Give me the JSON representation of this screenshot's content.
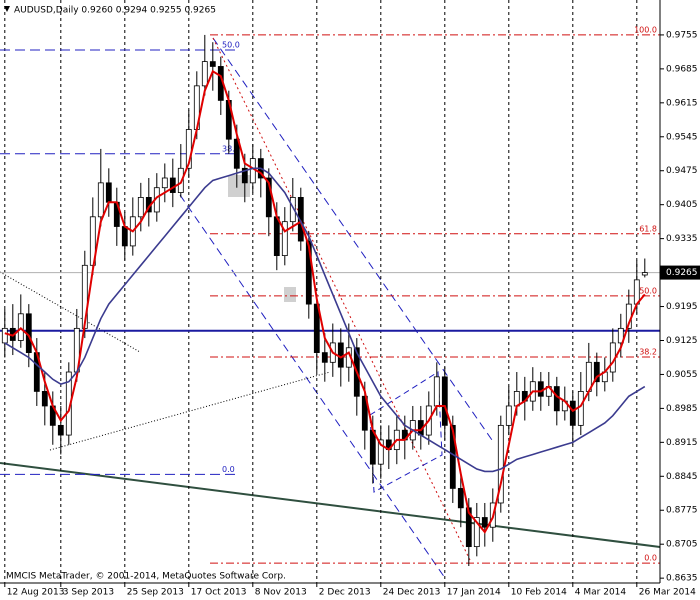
{
  "chart_data": {
    "type": "candlestick",
    "title": "AUDUSD,Daily  0.9260 0.9294 0.9255 0.9265",
    "footer": "MMCIS MetaTrader, © 2001-2014, MetaQuotes Software Corp.",
    "xlim": [
      -0.6,
      81.9
    ],
    "xticks": [
      {
        "value": 0,
        "label": "12 Aug 2013"
      },
      {
        "value": 7,
        "label": "3 Sep 2013"
      },
      {
        "value": 15,
        "label": "25 Sep 2013"
      },
      {
        "value": 23,
        "label": "17 Oct 2013"
      },
      {
        "value": 31,
        "label": "8 Nov 2013"
      },
      {
        "value": 39,
        "label": "2 Dec 2013"
      },
      {
        "value": 47,
        "label": "24 Dec 2013"
      },
      {
        "value": 55,
        "label": "17 Jan 2014"
      },
      {
        "value": 63,
        "label": "10 Feb 2014"
      },
      {
        "value": 71,
        "label": "4 Mar 2014"
      },
      {
        "value": 79,
        "label": "26 Mar 2014"
      }
    ],
    "ylim": [
      0.8625,
      0.9827
    ],
    "yticks": [
      0.9755,
      0.9685,
      0.9615,
      0.9545,
      0.9475,
      0.9405,
      0.9335,
      0.9195,
      0.9125,
      0.9055,
      0.8985,
      0.8915,
      0.8845,
      0.8775,
      0.8705,
      0.8635
    ],
    "current_price": 0.9265,
    "hline": 0.9145,
    "grid": true,
    "up_color": "#ffffff",
    "down_color": "#000000",
    "open": [
      0.912,
      0.915,
      0.9125,
      0.918,
      0.91,
      0.902,
      0.899,
      0.895,
      0.893,
      0.906,
      0.915,
      0.928,
      0.938,
      0.945,
      0.941,
      0.936,
      0.932,
      0.938,
      0.942,
      0.939,
      0.944,
      0.946,
      0.943,
      0.948,
      0.956,
      0.965,
      0.97,
      0.969,
      0.962,
      0.954,
      0.948,
      0.945,
      0.95,
      0.946,
      0.938,
      0.93,
      0.937,
      0.942,
      0.933,
      0.92,
      0.91,
      0.908,
      0.912,
      0.907,
      0.911,
      0.901,
      0.894,
      0.887,
      0.892,
      0.89,
      0.894,
      0.892,
      0.896,
      0.893,
      0.899,
      0.905,
      0.895,
      0.882,
      0.878,
      0.87,
      0.876,
      0.874,
      0.879,
      0.895,
      0.899,
      0.902,
      0.9,
      0.904,
      0.901,
      0.903,
      0.898,
      0.9,
      0.895,
      0.902,
      0.908,
      0.904,
      0.906,
      0.912,
      0.915,
      0.92,
      0.926
    ],
    "high": [
      0.919,
      0.92,
      0.922,
      0.92,
      0.913,
      0.906,
      0.902,
      0.899,
      0.908,
      0.919,
      0.931,
      0.942,
      0.952,
      0.948,
      0.944,
      0.939,
      0.942,
      0.945,
      0.946,
      0.947,
      0.949,
      0.95,
      0.953,
      0.96,
      0.968,
      0.9755,
      0.974,
      0.971,
      0.964,
      0.957,
      0.951,
      0.953,
      0.952,
      0.948,
      0.941,
      0.94,
      0.946,
      0.944,
      0.935,
      0.922,
      0.914,
      0.916,
      0.915,
      0.916,
      0.913,
      0.904,
      0.897,
      0.895,
      0.895,
      0.897,
      0.897,
      0.899,
      0.899,
      0.902,
      0.908,
      0.907,
      0.897,
      0.885,
      0.88,
      0.879,
      0.879,
      0.882,
      0.897,
      0.903,
      0.906,
      0.905,
      0.907,
      0.906,
      0.906,
      0.905,
      0.903,
      0.902,
      0.906,
      0.912,
      0.91,
      0.909,
      0.915,
      0.918,
      0.923,
      0.929,
      0.9294
    ],
    "low": [
      0.909,
      0.9095,
      0.911,
      0.907,
      0.899,
      0.895,
      0.891,
      0.889,
      0.891,
      0.904,
      0.913,
      0.926,
      0.936,
      0.938,
      0.932,
      0.929,
      0.93,
      0.935,
      0.936,
      0.937,
      0.941,
      0.94,
      0.942,
      0.946,
      0.954,
      0.963,
      0.964,
      0.959,
      0.951,
      0.944,
      0.941,
      0.943,
      0.942,
      0.934,
      0.927,
      0.928,
      0.935,
      0.931,
      0.917,
      0.906,
      0.904,
      0.905,
      0.903,
      0.904,
      0.897,
      0.89,
      0.883,
      0.884,
      0.886,
      0.887,
      0.888,
      0.89,
      0.89,
      0.891,
      0.897,
      0.892,
      0.879,
      0.874,
      0.866,
      0.868,
      0.87,
      0.871,
      0.877,
      0.893,
      0.897,
      0.896,
      0.898,
      0.898,
      0.899,
      0.895,
      0.896,
      0.891,
      0.893,
      0.9,
      0.901,
      0.902,
      0.904,
      0.909,
      0.912,
      0.918,
      0.9255
    ],
    "close": [
      0.915,
      0.9125,
      0.918,
      0.91,
      0.902,
      0.899,
      0.895,
      0.893,
      0.906,
      0.915,
      0.928,
      0.938,
      0.945,
      0.941,
      0.936,
      0.932,
      0.938,
      0.942,
      0.939,
      0.944,
      0.946,
      0.943,
      0.948,
      0.956,
      0.965,
      0.97,
      0.969,
      0.962,
      0.954,
      0.948,
      0.945,
      0.95,
      0.946,
      0.938,
      0.93,
      0.937,
      0.942,
      0.933,
      0.92,
      0.91,
      0.908,
      0.912,
      0.907,
      0.911,
      0.901,
      0.894,
      0.887,
      0.892,
      0.89,
      0.894,
      0.892,
      0.896,
      0.893,
      0.899,
      0.905,
      0.895,
      0.882,
      0.878,
      0.87,
      0.876,
      0.874,
      0.879,
      0.895,
      0.899,
      0.902,
      0.9,
      0.904,
      0.901,
      0.903,
      0.898,
      0.9,
      0.895,
      0.902,
      0.908,
      0.904,
      0.906,
      0.912,
      0.915,
      0.92,
      0.925,
      0.9265
    ],
    "series": [
      {
        "color": "#e00000",
        "values": [
          0.914,
          0.9135,
          0.915,
          0.9135,
          0.91,
          0.904,
          0.899,
          0.896,
          0.898,
          0.905,
          0.916,
          0.927,
          0.937,
          0.941,
          0.941,
          0.936,
          0.935,
          0.937,
          0.94,
          0.942,
          0.943,
          0.944,
          0.945,
          0.949,
          0.956,
          0.964,
          0.968,
          0.967,
          0.962,
          0.955,
          0.949,
          0.948,
          0.947,
          0.945,
          0.938,
          0.935,
          0.936,
          0.937,
          0.932,
          0.921,
          0.913,
          0.91,
          0.909,
          0.91,
          0.906,
          0.902,
          0.894,
          0.891,
          0.89,
          0.892,
          0.892,
          0.894,
          0.894,
          0.896,
          0.899,
          0.899,
          0.894,
          0.885,
          0.877,
          0.875,
          0.873,
          0.876,
          0.883,
          0.891,
          0.899,
          0.9,
          0.902,
          0.902,
          0.903,
          0.901,
          0.9,
          0.898,
          0.899,
          0.902,
          0.905,
          0.906,
          0.908,
          0.911,
          0.916,
          0.92,
          0.922
        ]
      },
      {
        "color": "#3b3b8f",
        "values": [
          0.912,
          0.911,
          0.91,
          0.909,
          0.9075,
          0.906,
          0.9045,
          0.9035,
          0.904,
          0.906,
          0.909,
          0.913,
          0.917,
          0.92,
          0.922,
          0.924,
          0.926,
          0.928,
          0.93,
          0.932,
          0.934,
          0.936,
          0.938,
          0.94,
          0.942,
          0.944,
          0.9455,
          0.946,
          0.9465,
          0.947,
          0.9475,
          0.948,
          0.948,
          0.947,
          0.945,
          0.943,
          0.94,
          0.937,
          0.934,
          0.93,
          0.926,
          0.922,
          0.918,
          0.914,
          0.91,
          0.907,
          0.904,
          0.901,
          0.899,
          0.897,
          0.895,
          0.894,
          0.893,
          0.892,
          0.891,
          0.89,
          0.889,
          0.888,
          0.887,
          0.886,
          0.8855,
          0.8855,
          0.886,
          0.887,
          0.888,
          0.8885,
          0.889,
          0.8895,
          0.89,
          0.8905,
          0.891,
          0.8915,
          0.8925,
          0.8935,
          0.8945,
          0.8955,
          0.897,
          0.899,
          0.901,
          0.902,
          0.903
        ]
      }
    ],
    "fib_red": [
      {
        "label": "100.0",
        "value": 0.9755
      },
      {
        "label": "61.8",
        "value": 0.9345
      },
      {
        "label": "50.0",
        "value": 0.9217
      },
      {
        "label": "38.2",
        "value": 0.9091
      },
      {
        "label": "0.0",
        "value": 0.8666
      }
    ],
    "fib_blue": [
      {
        "label": "50.0",
        "value": 0.9724
      },
      {
        "label": "38.2",
        "value": 0.951
      },
      {
        "label": "0.0",
        "value": 0.8849
      }
    ]
  }
}
